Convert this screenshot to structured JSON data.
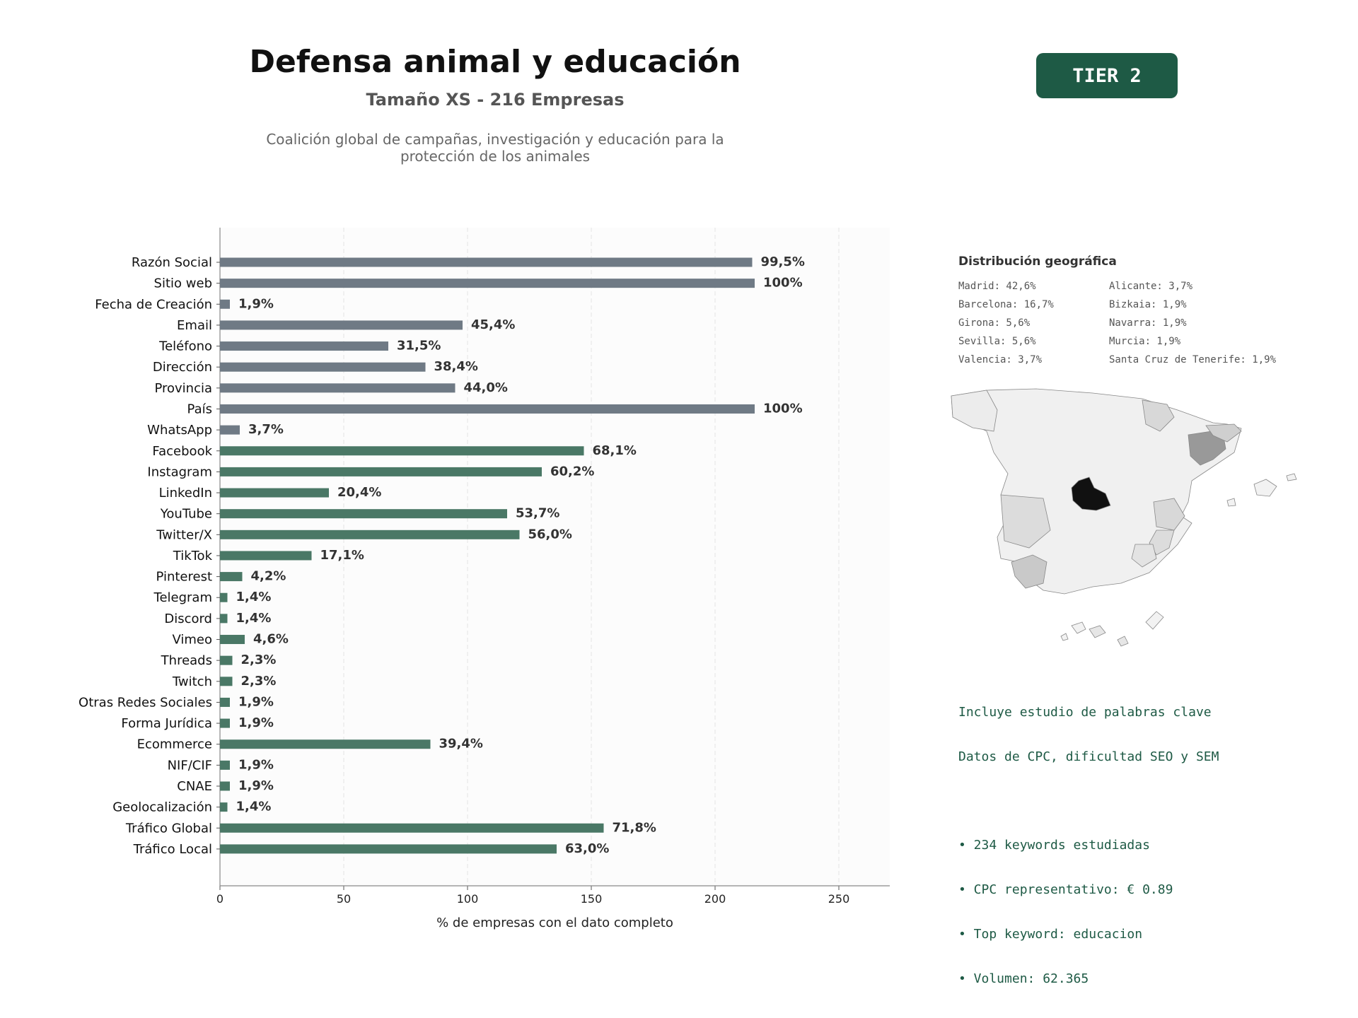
{
  "header": {
    "title": "Defensa animal y educación",
    "subtitle": "Tamaño XS - 216 Empresas",
    "description_line1": "Coalición global de campañas, investigación y educación para la",
    "description_line2": "protección de los animales",
    "tier_badge": "TIER 2"
  },
  "chart_data": {
    "type": "bar",
    "orientation": "horizontal",
    "xlabel": "% de empresas con el dato completo",
    "xlim": [
      0,
      270
    ],
    "xticks": [
      0,
      50,
      100,
      150,
      200,
      250
    ],
    "grid": "vertical dashed",
    "categories": [
      "Razón Social",
      "Sitio web",
      "Fecha de Creación",
      "Email",
      "Teléfono",
      "Dirección",
      "Provincia",
      "País",
      "WhatsApp",
      "Facebook",
      "Instagram",
      "LinkedIn",
      "YouTube",
      "Twitter/X",
      "TikTok",
      "Pinterest",
      "Telegram",
      "Discord",
      "Vimeo",
      "Threads",
      "Twitch",
      "Otras Redes Sociales",
      "Forma Jurídica",
      "Ecommerce",
      "NIF/CIF",
      "CNAE",
      "Geolocalización",
      "Tráfico Global",
      "Tráfico Local"
    ],
    "values": [
      215,
      216,
      4,
      98,
      68,
      83,
      95,
      216,
      8,
      147,
      130,
      44,
      116,
      121,
      37,
      9,
      3,
      3,
      10,
      5,
      5,
      4,
      4,
      85,
      4,
      4,
      3,
      155,
      136
    ],
    "labels": [
      "99,5%",
      "100%",
      "1,9%",
      "45,4%",
      "31,5%",
      "38,4%",
      "44,0%",
      "100%",
      "3,7%",
      "68,1%",
      "60,2%",
      "20,4%",
      "53,7%",
      "56,0%",
      "17,1%",
      "4,2%",
      "1,4%",
      "1,4%",
      "4,6%",
      "2,3%",
      "2,3%",
      "1,9%",
      "1,9%",
      "39,4%",
      "1,9%",
      "1,9%",
      "1,4%",
      "71,8%",
      "63,0%"
    ],
    "groups": [
      "gray",
      "gray",
      "gray",
      "gray",
      "gray",
      "gray",
      "gray",
      "gray",
      "gray",
      "green",
      "green",
      "green",
      "green",
      "green",
      "green",
      "green",
      "green",
      "green",
      "green",
      "green",
      "green",
      "green",
      "green",
      "green",
      "green",
      "green",
      "green",
      "green",
      "green"
    ],
    "colors": {
      "gray": "#6f7a85",
      "green": "#4a7866"
    }
  },
  "geo": {
    "title": "Distribución geográfica",
    "items": [
      "Madrid: 42,6%",
      "Alicante: 3,7%",
      "Barcelona: 16,7%",
      "Bizkaia: 1,9%",
      "Girona: 5,6%",
      "Navarra: 1,9%",
      "Sevilla: 5,6%",
      "Murcia: 1,9%",
      "Valencia: 3,7%",
      "Santa Cruz de Tenerife: 1,9%"
    ]
  },
  "keywords": {
    "line1": "Incluye estudio de palabras clave",
    "line2": "Datos de CPC, dificultad SEO y SEM",
    "bullet1": "• 234 keywords estudiadas",
    "bullet2": "• CPC representativo: € 0.89",
    "bullet3": "• Top keyword: educacion",
    "bullet4": "• Volumen: 62.365"
  }
}
